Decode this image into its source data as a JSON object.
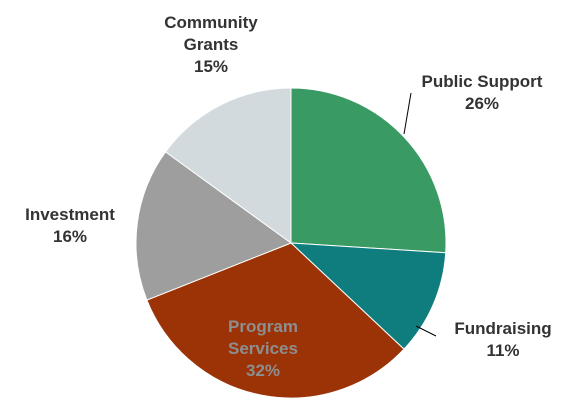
{
  "chart_data": {
    "type": "pie",
    "title": "",
    "slices": [
      {
        "name": "Public Support",
        "value": 26,
        "percent_label": "26%",
        "color": "#3a9a63",
        "label_lines": [
          "Public Support"
        ]
      },
      {
        "name": "Fundraising",
        "value": 11,
        "percent_label": "11%",
        "color": "#0f7d7d",
        "label_lines": [
          "Fundraising"
        ]
      },
      {
        "name": "Program Services",
        "value": 32,
        "percent_label": "32%",
        "color": "#9c3306",
        "label_lines": [
          "Program",
          "Services"
        ],
        "label_color": "#8e8e8e"
      },
      {
        "name": "Investment",
        "value": 16,
        "percent_label": "16%",
        "color": "#9e9e9e",
        "label_lines": [
          "Investment"
        ]
      },
      {
        "name": "Community Grants",
        "value": 15,
        "percent_label": "15%",
        "color": "#d2dade",
        "label_lines": [
          "Community",
          "Grants"
        ]
      }
    ]
  }
}
